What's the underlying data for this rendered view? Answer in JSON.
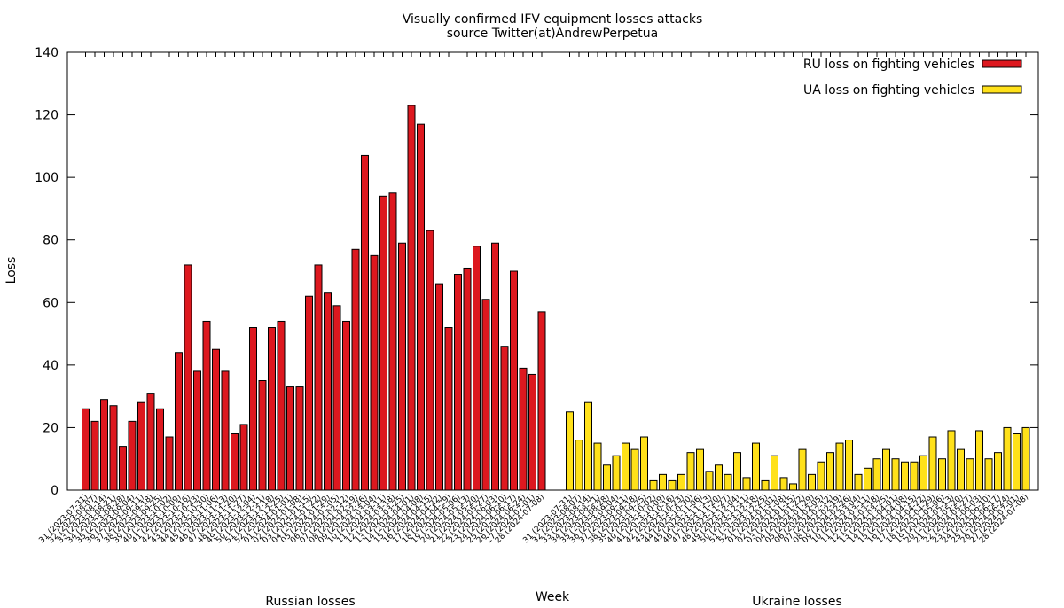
{
  "chart_data": {
    "type": "bar",
    "title": "Visually confirmed IFV equipment losses attacks",
    "subtitle": "source Twitter(at)AndrewPerpetua",
    "xlabel": "Week",
    "ylabel": "Loss",
    "ylim": [
      0,
      140
    ],
    "yticks": [
      0,
      20,
      40,
      60,
      80,
      100,
      120,
      140
    ],
    "legend_placement": "top-right",
    "groups": [
      "Russian losses",
      "Ukraine losses"
    ],
    "categories": [
      "31 (2023-07-31)",
      "32 (2023-08-07)",
      "33 (2023-08-14)",
      "34 (2023-08-21)",
      "35 (2023-08-28)",
      "36 (2023-09-04)",
      "37 (2023-09-11)",
      "38 (2023-09-18)",
      "39 (2023-09-25)",
      "40 (2023-10-02)",
      "41 (2023-10-09)",
      "42 (2023-10-16)",
      "43 (2023-10-23)",
      "44 (2023-10-30)",
      "45 (2023-11-06)",
      "46 (2023-11-13)",
      "47 (2023-11-20)",
      "48 (2023-11-27)",
      "49 (2023-12-04)",
      "50 (2023-12-11)",
      "51 (2023-12-18)",
      "52 (2023-12-25)",
      "01 (2024-01-01)",
      "02 (2024-01-08)",
      "03 (2024-01-15)",
      "04 (2024-01-22)",
      "05 (2024-01-29)",
      "06 (2024-02-05)",
      "07 (2024-02-12)",
      "08 (2024-02-19)",
      "09 (2024-02-26)",
      "10 (2024-03-04)",
      "11 (2024-03-11)",
      "12 (2024-03-18)",
      "13 (2024-03-25)",
      "14 (2024-04-01)",
      "15 (2024-04-08)",
      "16 (2024-04-15)",
      "17 (2024-04-22)",
      "18 (2024-04-29)",
      "19 (2024-05-06)",
      "20 (2024-05-13)",
      "21 (2024-05-20)",
      "22 (2024-05-27)",
      "23 (2024-06-03)",
      "24 (2024-06-10)",
      "25 (2024-06-17)",
      "26 (2024-06-24)",
      "27 (2024-07-01)",
      "28 (2024-07-08)"
    ],
    "series": [
      {
        "name": "RU loss on fighting vehicles",
        "group": "Russian losses",
        "color": "#dd181f",
        "values": [
          26,
          22,
          29,
          27,
          14,
          22,
          28,
          31,
          26,
          17,
          44,
          72,
          38,
          54,
          45,
          38,
          18,
          21,
          52,
          35,
          52,
          54,
          33,
          33,
          62,
          72,
          63,
          59,
          54,
          77,
          107,
          75,
          94,
          95,
          79,
          123,
          117,
          83,
          66,
          52,
          69,
          71,
          78,
          61,
          79,
          46,
          70,
          39,
          37,
          57
        ]
      },
      {
        "name": "UA loss on fighting vehicles",
        "group": "Ukraine losses",
        "color": "#ffe11a",
        "values": [
          25,
          16,
          28,
          15,
          8,
          11,
          15,
          13,
          17,
          3,
          5,
          3,
          5,
          12,
          13,
          6,
          8,
          5,
          12,
          4,
          15,
          3,
          11,
          4,
          2,
          13,
          5,
          9,
          12,
          15,
          16,
          5,
          7,
          10,
          13,
          10,
          9,
          9,
          11,
          17,
          10,
          19,
          13,
          10,
          19,
          10,
          12,
          20,
          18,
          20
        ]
      }
    ]
  }
}
